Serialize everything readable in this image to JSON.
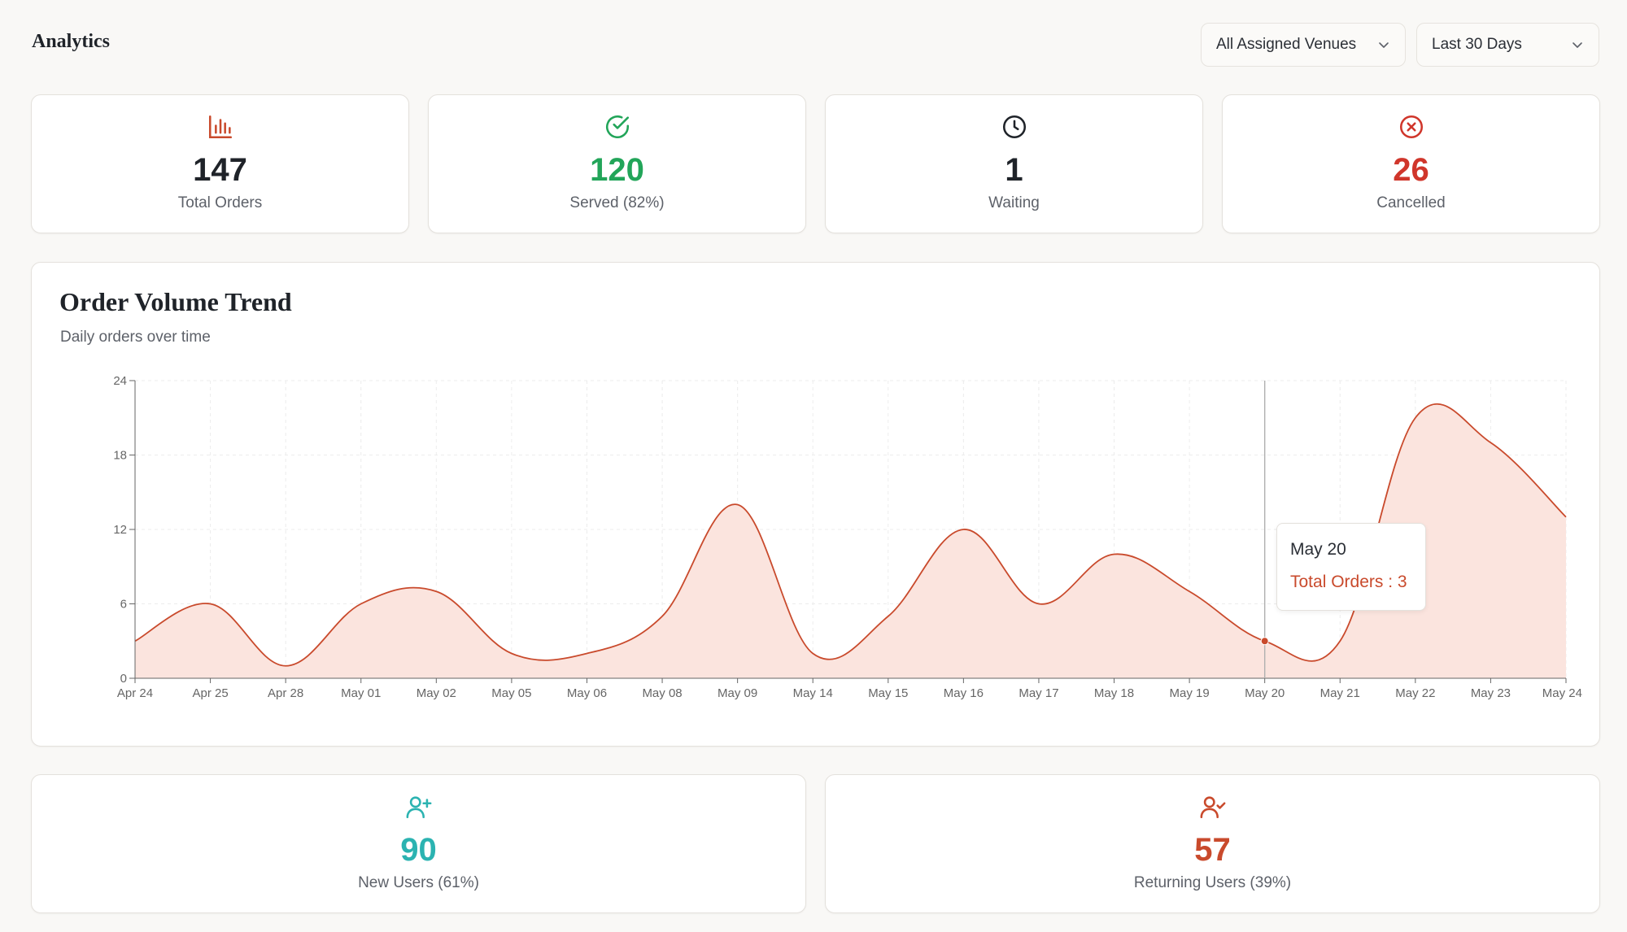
{
  "header": {
    "title": "Analytics",
    "venue_filter": "All Assigned Venues",
    "range_filter": "Last 30 Days"
  },
  "stats": [
    {
      "value": "147",
      "label": "Total Orders",
      "icon": "bar-chart-icon",
      "color": "#c94a2c",
      "value_color": "#1f2329"
    },
    {
      "value": "120",
      "label": "Served (82%)",
      "icon": "check-circle-icon",
      "color": "#22a559",
      "value_color": "#22a559"
    },
    {
      "value": "1",
      "label": "Waiting",
      "icon": "clock-icon",
      "color": "#1f2329",
      "value_color": "#1f2329"
    },
    {
      "value": "26",
      "label": "Cancelled",
      "icon": "x-circle-icon",
      "color": "#d0362b",
      "value_color": "#d0362b"
    }
  ],
  "chart": {
    "title": "Order Volume Trend",
    "subtitle": "Daily orders over time",
    "tooltip": {
      "date": "May 20",
      "value_text": "Total Orders : 3"
    }
  },
  "chart_data": {
    "type": "area",
    "categories": [
      "Apr 24",
      "Apr 25",
      "Apr 28",
      "May 01",
      "May 02",
      "May 05",
      "May 06",
      "May 08",
      "May 09",
      "May 14",
      "May 15",
      "May 16",
      "May 17",
      "May 18",
      "May 19",
      "May 20",
      "May 21",
      "May 22",
      "May 23",
      "May 24"
    ],
    "series": [
      {
        "values": [
          3,
          6,
          1,
          6,
          7,
          2,
          2,
          5,
          14,
          2,
          5,
          12,
          6,
          10,
          7,
          3,
          3,
          21,
          19,
          13
        ]
      }
    ],
    "ylim": [
      0,
      24
    ],
    "yticks": [
      0,
      6,
      12,
      18,
      24
    ],
    "grid": true,
    "color": "#c94a2c",
    "fill": "#fbe4de",
    "highlight_index": 15
  },
  "users": [
    {
      "value": "90",
      "label": "New Users (61%)",
      "icon": "user-plus-icon",
      "color": "#2bb3b1"
    },
    {
      "value": "57",
      "label": "Returning Users (39%)",
      "icon": "user-check-icon",
      "color": "#c94a2c"
    }
  ]
}
